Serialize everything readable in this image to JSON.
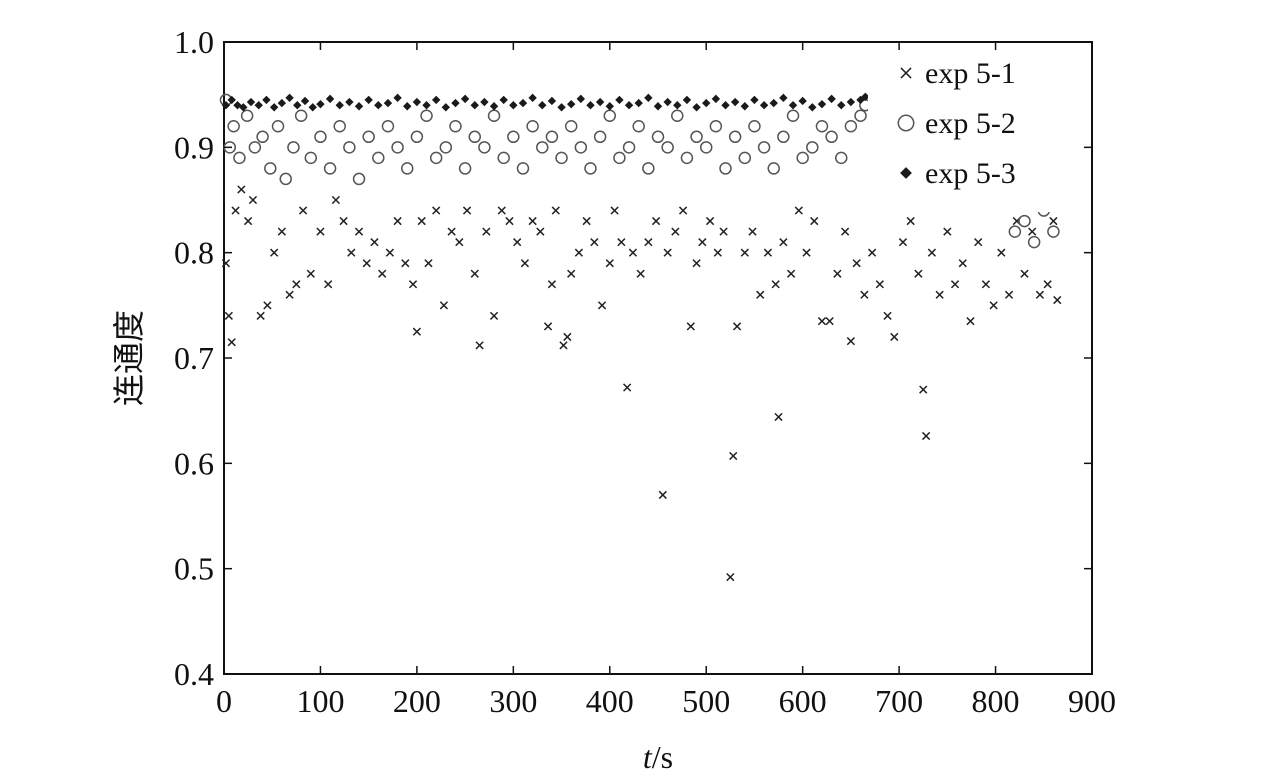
{
  "chart_data": {
    "type": "scatter",
    "title": "",
    "xlabel_italic": "t",
    "xlabel_unit": "/s",
    "ylabel": "连通度",
    "xlim": [
      0,
      900
    ],
    "ylim": [
      0.4,
      1.0
    ],
    "xticks": [
      0,
      100,
      200,
      300,
      400,
      500,
      600,
      700,
      800,
      900
    ],
    "yticks": [
      0.4,
      0.5,
      0.6,
      0.7,
      0.8,
      0.9,
      1.0
    ],
    "xtick_labels": [
      "0",
      "100",
      "200",
      "300",
      "400",
      "500",
      "600",
      "700",
      "800",
      "900"
    ],
    "ytick_labels": [
      "0.4",
      "0.5",
      "0.6",
      "0.7",
      "0.8",
      "0.9",
      "1.0"
    ],
    "grid": false,
    "legend_position": "top-right",
    "series": [
      {
        "name": "exp 5-1",
        "marker": "x",
        "color": "#222222",
        "x": [
          2,
          5,
          8,
          12,
          18,
          25,
          30,
          38,
          45,
          52,
          60,
          68,
          75,
          82,
          90,
          100,
          108,
          116,
          124,
          132,
          140,
          148,
          156,
          164,
          172,
          180,
          188,
          196,
          200,
          205,
          212,
          220,
          228,
          236,
          244,
          252,
          260,
          265,
          272,
          280,
          288,
          296,
          304,
          312,
          320,
          328,
          336,
          340,
          344,
          352,
          356,
          360,
          368,
          376,
          384,
          392,
          400,
          405,
          412,
          418,
          424,
          432,
          440,
          448,
          455,
          460,
          468,
          476,
          484,
          490,
          496,
          504,
          512,
          518,
          525,
          528,
          532,
          540,
          548,
          556,
          564,
          572,
          575,
          580,
          588,
          596,
          604,
          612,
          620,
          628,
          636,
          644,
          650,
          656,
          664,
          672,
          680,
          688,
          695,
          704,
          712,
          720,
          725,
          728,
          734,
          742,
          750,
          758,
          766,
          774,
          782,
          790,
          798,
          806,
          814,
          822,
          830,
          838,
          846,
          854,
          860,
          864
        ],
        "y": [
          0.79,
          0.74,
          0.715,
          0.84,
          0.86,
          0.83,
          0.85,
          0.74,
          0.75,
          0.8,
          0.82,
          0.76,
          0.77,
          0.84,
          0.78,
          0.82,
          0.77,
          0.85,
          0.83,
          0.8,
          0.82,
          0.79,
          0.81,
          0.78,
          0.8,
          0.83,
          0.79,
          0.77,
          0.725,
          0.83,
          0.79,
          0.84,
          0.75,
          0.82,
          0.81,
          0.84,
          0.78,
          0.712,
          0.82,
          0.74,
          0.84,
          0.83,
          0.81,
          0.79,
          0.83,
          0.82,
          0.73,
          0.77,
          0.84,
          0.712,
          0.72,
          0.78,
          0.8,
          0.83,
          0.81,
          0.75,
          0.79,
          0.84,
          0.81,
          0.672,
          0.8,
          0.78,
          0.81,
          0.83,
          0.57,
          0.8,
          0.82,
          0.84,
          0.73,
          0.79,
          0.81,
          0.83,
          0.8,
          0.82,
          0.492,
          0.607,
          0.73,
          0.8,
          0.82,
          0.76,
          0.8,
          0.77,
          0.644,
          0.81,
          0.78,
          0.84,
          0.8,
          0.83,
          0.735,
          0.735,
          0.78,
          0.82,
          0.716,
          0.79,
          0.76,
          0.8,
          0.77,
          0.74,
          0.72,
          0.81,
          0.83,
          0.78,
          0.67,
          0.626,
          0.8,
          0.76,
          0.82,
          0.77,
          0.79,
          0.735,
          0.81,
          0.77,
          0.75,
          0.8,
          0.76,
          0.83,
          0.78,
          0.82,
          0.76,
          0.77,
          0.83,
          0.755
        ]
      },
      {
        "name": "exp 5-2",
        "marker": "o",
        "color": "#555555",
        "x": [
          2,
          6,
          10,
          16,
          24,
          32,
          40,
          48,
          56,
          64,
          72,
          80,
          90,
          100,
          110,
          120,
          130,
          140,
          150,
          160,
          170,
          180,
          190,
          200,
          210,
          220,
          230,
          240,
          250,
          260,
          270,
          280,
          290,
          300,
          310,
          320,
          330,
          340,
          350,
          360,
          370,
          380,
          390,
          400,
          410,
          420,
          430,
          440,
          450,
          460,
          470,
          480,
          490,
          500,
          510,
          520,
          530,
          540,
          550,
          560,
          570,
          580,
          590,
          600,
          610,
          620,
          630,
          640,
          650,
          660,
          665,
          820,
          830,
          840,
          850,
          860
        ],
        "y": [
          0.945,
          0.9,
          0.92,
          0.89,
          0.93,
          0.9,
          0.91,
          0.88,
          0.92,
          0.87,
          0.9,
          0.93,
          0.89,
          0.91,
          0.88,
          0.92,
          0.9,
          0.87,
          0.91,
          0.89,
          0.92,
          0.9,
          0.88,
          0.91,
          0.93,
          0.89,
          0.9,
          0.92,
          0.88,
          0.91,
          0.9,
          0.93,
          0.89,
          0.91,
          0.88,
          0.92,
          0.9,
          0.91,
          0.89,
          0.92,
          0.9,
          0.88,
          0.91,
          0.93,
          0.89,
          0.9,
          0.92,
          0.88,
          0.91,
          0.9,
          0.93,
          0.89,
          0.91,
          0.9,
          0.92,
          0.88,
          0.91,
          0.89,
          0.92,
          0.9,
          0.88,
          0.91,
          0.93,
          0.89,
          0.9,
          0.92,
          0.91,
          0.89,
          0.92,
          0.93,
          0.94,
          0.82,
          0.83,
          0.81,
          0.84,
          0.82
        ]
      },
      {
        "name": "exp 5-3",
        "marker": "diamond",
        "color": "#1a1a1a",
        "x": [
          2,
          8,
          14,
          20,
          28,
          36,
          44,
          52,
          60,
          68,
          76,
          84,
          92,
          100,
          110,
          120,
          130,
          140,
          150,
          160,
          170,
          180,
          190,
          200,
          210,
          220,
          230,
          240,
          250,
          260,
          270,
          280,
          290,
          300,
          310,
          320,
          330,
          340,
          350,
          360,
          370,
          380,
          390,
          400,
          410,
          420,
          430,
          440,
          450,
          460,
          470,
          480,
          490,
          500,
          510,
          520,
          530,
          540,
          550,
          560,
          570,
          580,
          590,
          600,
          610,
          620,
          630,
          640,
          650,
          660,
          665
        ],
        "y": [
          0.94,
          0.945,
          0.94,
          0.938,
          0.943,
          0.94,
          0.945,
          0.938,
          0.942,
          0.947,
          0.94,
          0.944,
          0.938,
          0.941,
          0.946,
          0.94,
          0.943,
          0.939,
          0.945,
          0.94,
          0.942,
          0.947,
          0.939,
          0.943,
          0.94,
          0.945,
          0.938,
          0.942,
          0.946,
          0.94,
          0.943,
          0.939,
          0.945,
          0.94,
          0.942,
          0.947,
          0.94,
          0.944,
          0.938,
          0.941,
          0.946,
          0.94,
          0.943,
          0.939,
          0.945,
          0.94,
          0.942,
          0.947,
          0.939,
          0.943,
          0.94,
          0.945,
          0.938,
          0.942,
          0.946,
          0.94,
          0.943,
          0.939,
          0.945,
          0.94,
          0.942,
          0.947,
          0.94,
          0.944,
          0.938,
          0.941,
          0.946,
          0.94,
          0.943,
          0.945,
          0.948
        ]
      }
    ]
  }
}
